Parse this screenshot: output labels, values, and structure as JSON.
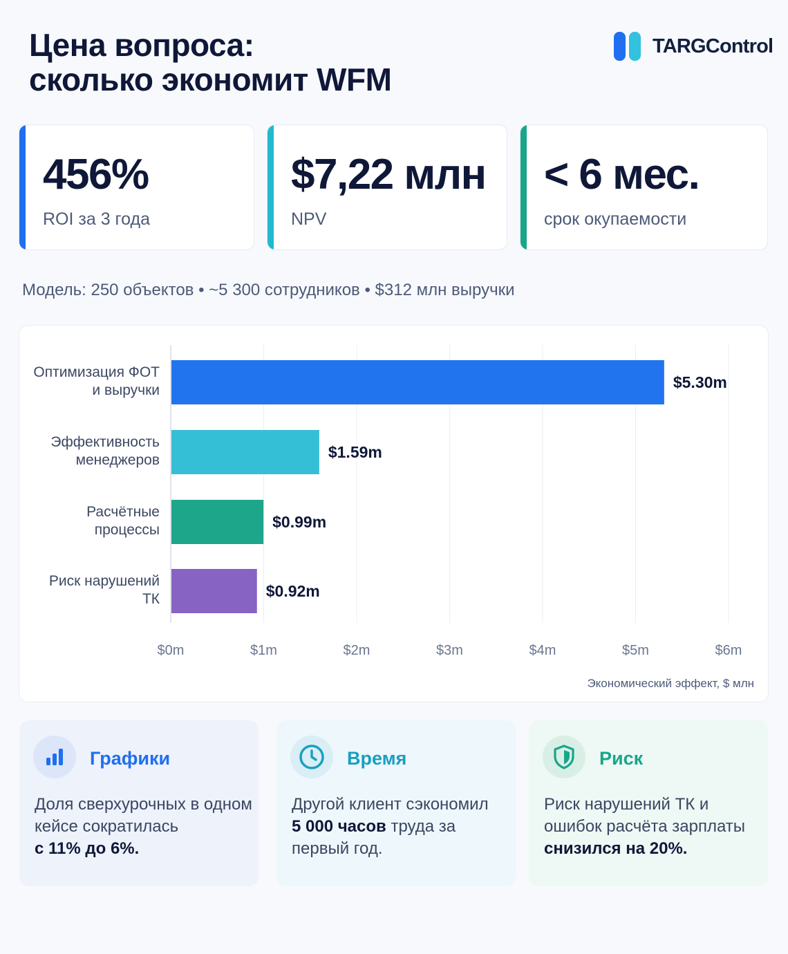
{
  "header": {
    "title_line1": "Цена вопроса:",
    "title_line2": "сколько экономит WFM",
    "brand": "TARGControl"
  },
  "kpis": [
    {
      "value": "456%",
      "label": "ROI за 3 года",
      "color": "#1f6ff0"
    },
    {
      "value": "$7,22 млн",
      "label": "NPV",
      "color": "#22b9cf"
    },
    {
      "value": "< 6 мес.",
      "label": "срок окупаемости",
      "color": "#18a68a"
    }
  ],
  "model_text": "Модель: 250 объектов • ~5 300 сотрудников • $312 млн выручки",
  "chart_data": {
    "type": "bar",
    "orientation": "horizontal",
    "categories": [
      [
        "Оптимизация ФОТ",
        "и выручки"
      ],
      [
        "Эффективность",
        "менеджеров"
      ],
      [
        "Расчётные",
        "процессы"
      ],
      [
        "Риск нарушений",
        "ТК"
      ]
    ],
    "values": [
      5.3,
      1.59,
      0.99,
      0.92
    ],
    "value_labels": [
      "$5.30m",
      "$1.59m",
      "$0.99m",
      "$0.92m"
    ],
    "colors": [
      "#2174ee",
      "#35bfd6",
      "#1ea68a",
      "#8763c4"
    ],
    "xlim": [
      0,
      6
    ],
    "xticks": [
      "$0m",
      "$1m",
      "$2m",
      "$3m",
      "$4m",
      "$5m",
      "$6m"
    ],
    "xlabel": "Экономический эффект, $ млн",
    "grid": "vertical"
  },
  "info_cards": [
    {
      "title": "Графики",
      "icon": "bar-chart-icon",
      "text_plain": "Доля сверхурочных в одном кейсе сократилась",
      "text_bold": "с 11% до 6%.",
      "color": "#1f6ff0"
    },
    {
      "title": "Время",
      "icon": "clock-icon",
      "text_plain_before": "Другой клиент сэкономил",
      "text_bold": "5 000 часов",
      "text_plain_after": "труда за первый год.",
      "color": "#1a9fc2"
    },
    {
      "title": "Риск",
      "icon": "shield-icon",
      "text_plain": "Риск нарушений ТК и ошибок расчёта зарплаты",
      "text_bold": "снизился на 20%.",
      "color": "#18a68a"
    }
  ]
}
